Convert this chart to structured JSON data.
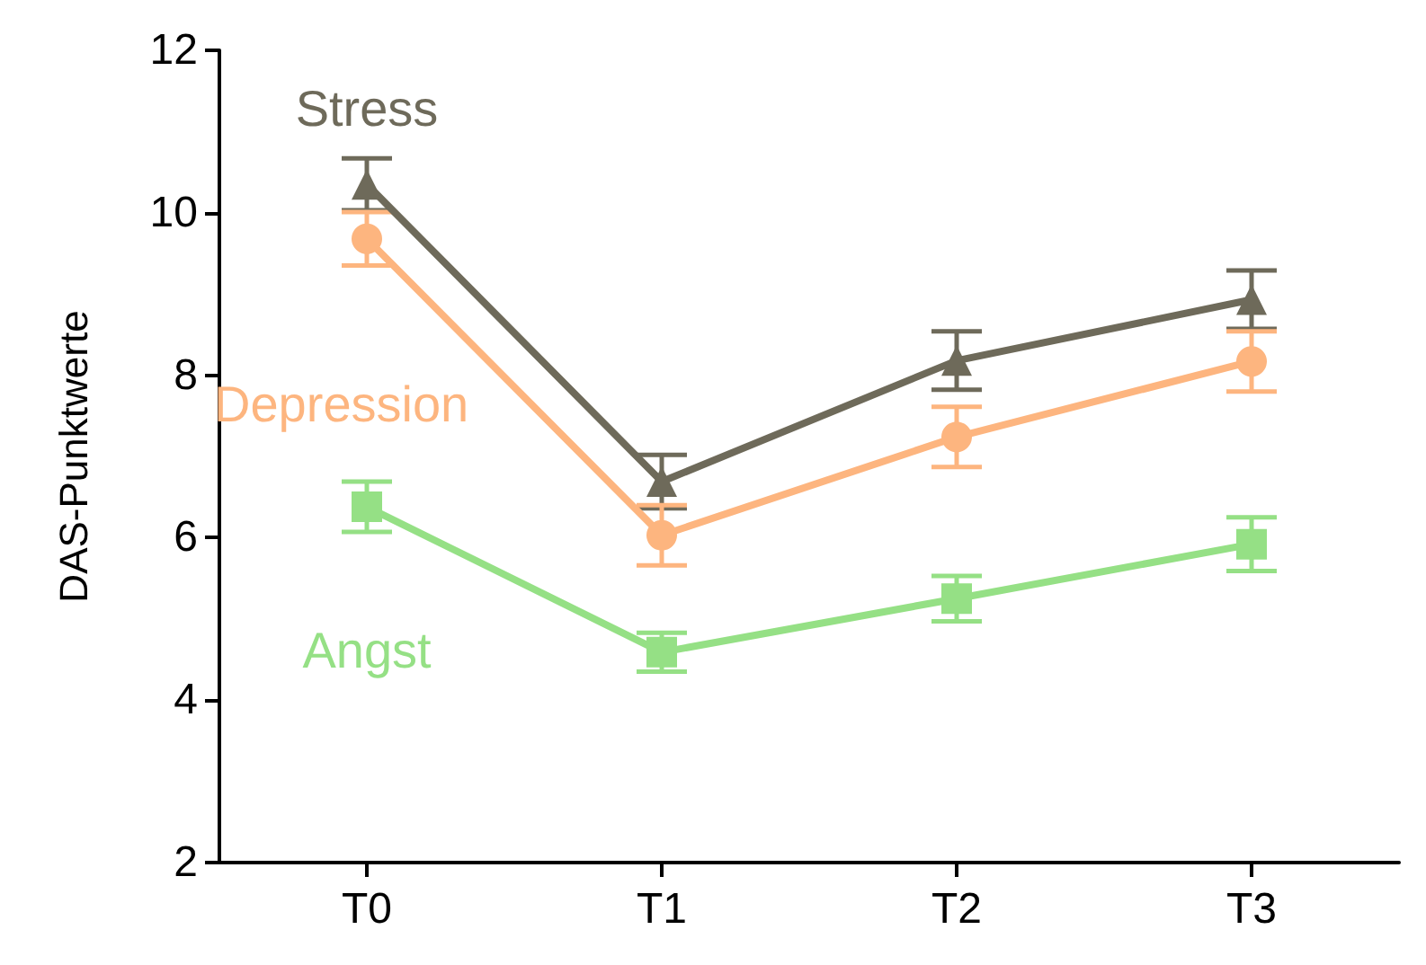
{
  "chart_data": {
    "type": "line",
    "ylabel": "DAS-Punktwerte",
    "categories": [
      "T0",
      "T1",
      "T2",
      "T3"
    ],
    "ylim": [
      2,
      12
    ],
    "yticks": [
      2,
      4,
      6,
      8,
      10,
      12
    ],
    "grid": false,
    "legend": false,
    "line_style": "solid",
    "series": [
      {
        "name": "Stress",
        "color": "#6e6a5a",
        "marker": "triangle",
        "values": [
          10.35,
          6.69,
          8.18,
          8.93
        ],
        "errors": [
          0.32,
          0.33,
          0.36,
          0.36
        ]
      },
      {
        "name": "Depression",
        "color": "#fdb57f",
        "marker": "circle",
        "values": [
          9.68,
          6.03,
          7.24,
          8.17
        ],
        "errors": [
          0.33,
          0.37,
          0.37,
          0.37
        ]
      },
      {
        "name": "Angst",
        "color": "#95e085",
        "marker": "square",
        "values": [
          6.38,
          4.59,
          5.25,
          5.92
        ],
        "errors": [
          0.31,
          0.24,
          0.28,
          0.33
        ]
      }
    ]
  }
}
